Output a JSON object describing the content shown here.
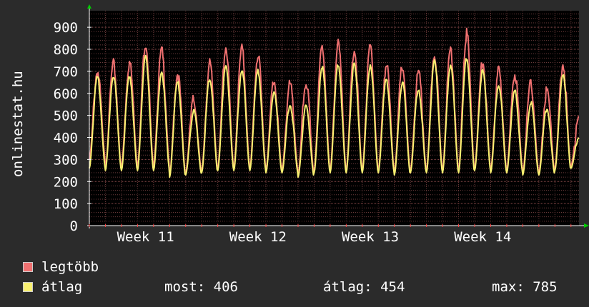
{
  "y_axis_title": "onlinestat.hu",
  "chart_data": {
    "type": "line",
    "title": "",
    "xlabel": "",
    "ylabel": "onlinestat.hu",
    "ylim": [
      0,
      975
    ],
    "y_ticks": [
      0,
      100,
      200,
      300,
      400,
      500,
      600,
      700,
      800,
      900
    ],
    "x_ticks": [
      "Week 11",
      "Week 12",
      "Week 13",
      "Week 14"
    ],
    "x_range_days": [
      0,
      30.5
    ],
    "x_tick_days": [
      3.5,
      10.5,
      17.5,
      24.5
    ],
    "days": 31,
    "series": [
      {
        "name": "legtöbb",
        "color": "#f07070",
        "daily_peaks": [
          700,
          730,
          740,
          830,
          790,
          690,
          570,
          730,
          810,
          800,
          770,
          660,
          640,
          650,
          810,
          820,
          800,
          810,
          730,
          720,
          690,
          780,
          800,
          870,
          740,
          700,
          690,
          640,
          610,
          730,
          480
        ],
        "daily_troughs": [
          300,
          260,
          270,
          270,
          270,
          230,
          240,
          250,
          260,
          260,
          260,
          250,
          250,
          230,
          250,
          250,
          250,
          250,
          250,
          240,
          250,
          250,
          250,
          250,
          260,
          250,
          250,
          240,
          240,
          260,
          270
        ]
      },
      {
        "name": "átlag",
        "color": "#f8f070",
        "daily_peaks": [
          670,
          680,
          680,
          760,
          700,
          650,
          520,
          670,
          720,
          710,
          700,
          600,
          550,
          540,
          720,
          730,
          730,
          730,
          660,
          650,
          620,
          740,
          730,
          760,
          700,
          640,
          610,
          560,
          530,
          680,
          400
        ],
        "daily_troughs": [
          260,
          250,
          250,
          250,
          250,
          220,
          230,
          240,
          250,
          250,
          250,
          240,
          240,
          220,
          240,
          240,
          240,
          240,
          240,
          230,
          240,
          240,
          240,
          240,
          250,
          240,
          240,
          230,
          230,
          250,
          260
        ]
      }
    ],
    "grid": true,
    "legend": "bottom-left"
  },
  "legend": [
    {
      "label": "legtöbb",
      "color": "#f07070"
    },
    {
      "label": "átlag",
      "color": "#f8f070"
    }
  ],
  "stats": {
    "most": "most: 406",
    "atlag": "átlag: 454",
    "max": "max: 785"
  },
  "colors": {
    "background": "#2b2b2b",
    "plot_background": "#000000",
    "grid": "#6a3a3a",
    "axis": "#ffffff",
    "arrow": "#00cc00"
  }
}
